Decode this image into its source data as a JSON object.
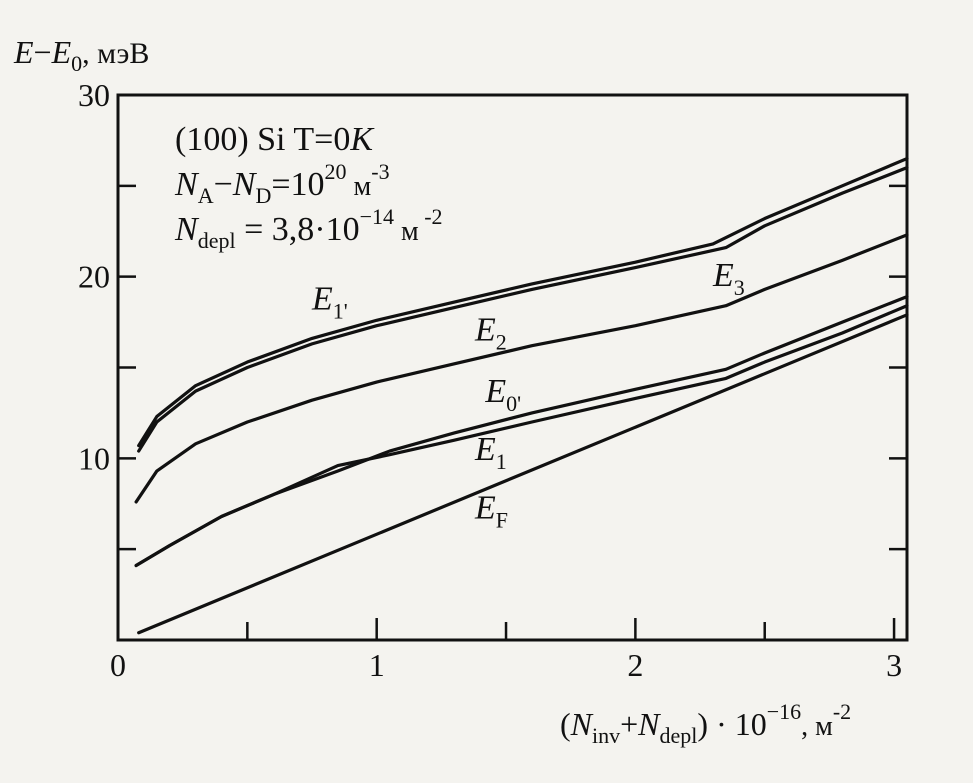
{
  "chart_data": {
    "type": "line",
    "ylabel": {
      "main": "E",
      "minus": "−",
      "sub_var": "E",
      "sub": "0",
      "unit": ", мэВ"
    },
    "xlabel": {
      "open": "(",
      "n1": "N",
      "s1": "inv",
      "plus": "+",
      "n2": "N",
      "s2": "depl",
      "close": ")",
      "mul": " · 10",
      "exp": "−16",
      "unit": ", м",
      "unit_exp": "-2"
    },
    "xlim": [
      0,
      3.05
    ],
    "ylim": [
      0,
      30
    ],
    "x_ticks": [
      "0",
      "1",
      "2",
      "3"
    ],
    "y_ticks": [
      "10",
      "20",
      "30"
    ],
    "grid": false,
    "annotation": {
      "line1": "(100) Si T=0",
      "line1_k": "K",
      "line2": {
        "n1": "N",
        "s1": "A",
        "minus": "−",
        "n2": "N",
        "s2": "D",
        "eq": "=10",
        "exp": "20",
        "unit": " м",
        "unit_exp": "-3"
      },
      "line3": {
        "n": "N",
        "s": "depl",
        "eq": " = 3,8·10",
        "exp": "−14",
        "unit": " м",
        "unit_exp": " -2"
      }
    },
    "series": [
      {
        "name": "E1'",
        "label_base": "E",
        "label_sub": "1'",
        "label_pos": [
          0.75,
          18.2
        ],
        "points": [
          [
            0.08,
            10.7
          ],
          [
            0.15,
            12.3
          ],
          [
            0.3,
            14
          ],
          [
            0.5,
            15.3
          ],
          [
            0.75,
            16.6
          ],
          [
            1,
            17.6
          ],
          [
            1.3,
            18.6
          ],
          [
            1.6,
            19.6
          ],
          [
            2,
            20.8
          ],
          [
            2.3,
            21.8
          ],
          [
            2.5,
            23.2
          ],
          [
            2.8,
            25
          ],
          [
            3.05,
            26.5
          ]
        ]
      },
      {
        "name": "E3",
        "label_base": "E",
        "label_sub": "3",
        "label_pos": [
          2.3,
          19.5
        ],
        "points": [
          [
            0.08,
            10.4
          ],
          [
            0.15,
            12
          ],
          [
            0.3,
            13.7
          ],
          [
            0.5,
            15
          ],
          [
            0.75,
            16.3
          ],
          [
            1,
            17.3
          ],
          [
            1.3,
            18.3
          ],
          [
            1.6,
            19.3
          ],
          [
            2,
            20.5
          ],
          [
            2.35,
            21.6
          ],
          [
            2.5,
            22.8
          ],
          [
            2.8,
            24.6
          ],
          [
            3.05,
            26
          ]
        ]
      },
      {
        "name": "E2",
        "label_base": "E",
        "label_sub": "2",
        "label_pos": [
          1.38,
          16.5
        ],
        "points": [
          [
            0.07,
            7.6
          ],
          [
            0.15,
            9.3
          ],
          [
            0.3,
            10.8
          ],
          [
            0.5,
            12
          ],
          [
            0.75,
            13.2
          ],
          [
            1,
            14.2
          ],
          [
            1.3,
            15.2
          ],
          [
            1.6,
            16.2
          ],
          [
            2,
            17.3
          ],
          [
            2.35,
            18.4
          ],
          [
            2.5,
            19.3
          ],
          [
            2.8,
            20.9
          ],
          [
            3.05,
            22.3
          ]
        ]
      },
      {
        "name": "E0'",
        "label_base": "E",
        "label_sub": "0'",
        "label_pos": [
          1.42,
          13.1
        ],
        "points": [
          [
            0.07,
            4.1
          ],
          [
            0.2,
            5.2
          ],
          [
            0.4,
            6.8
          ],
          [
            0.6,
            8
          ],
          [
            0.85,
            9.3
          ],
          [
            1.05,
            10.4
          ],
          [
            1.3,
            11.4
          ],
          [
            1.6,
            12.5
          ],
          [
            2,
            13.8
          ],
          [
            2.35,
            14.9
          ],
          [
            2.5,
            15.8
          ],
          [
            2.8,
            17.5
          ],
          [
            3.05,
            18.9
          ]
        ]
      },
      {
        "name": "E1",
        "label_base": "E",
        "label_sub": "1",
        "label_pos": [
          1.38,
          9.9
        ],
        "points": [
          [
            0.07,
            4.1
          ],
          [
            0.2,
            5.2
          ],
          [
            0.4,
            6.8
          ],
          [
            0.6,
            8
          ],
          [
            0.85,
            9.6
          ],
          [
            1.05,
            10.2
          ],
          [
            1.3,
            11
          ],
          [
            1.6,
            12
          ],
          [
            2,
            13.3
          ],
          [
            2.35,
            14.4
          ],
          [
            2.5,
            15.3
          ],
          [
            2.8,
            16.9
          ],
          [
            3.05,
            18.4
          ]
        ]
      },
      {
        "name": "EF",
        "label_base": "E",
        "label_sub": "F",
        "label_pos": [
          1.38,
          6.7
        ],
        "points": [
          [
            0.08,
            0.4
          ],
          [
            3.05,
            17.9
          ]
        ]
      }
    ]
  }
}
